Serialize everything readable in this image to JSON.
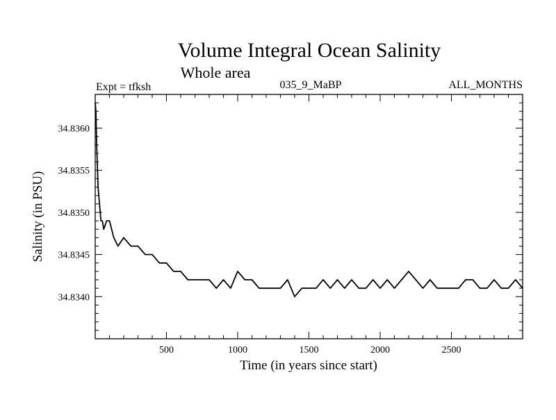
{
  "chart_data": {
    "type": "line",
    "title": "Volume Integral Ocean Salinity",
    "subtitle": "Whole area",
    "experiment_label": "Expt = tfksh",
    "run_label": "035_9_MaBP",
    "months_label": "ALL_MONTHS",
    "xlabel": "Time (in years since start)",
    "ylabel": "Salinity (in PSU)",
    "xlim": [
      0,
      3000
    ],
    "ylim": [
      34.8335,
      34.8364
    ],
    "x_ticks": [
      500,
      1000,
      1500,
      2000,
      2500
    ],
    "x_tick_labels": [
      "500",
      "1000",
      "1500",
      "2000",
      "2500"
    ],
    "y_ticks": [
      34.834,
      34.8345,
      34.835,
      34.8355,
      34.836
    ],
    "y_tick_labels": [
      "34.8340",
      "34.8345",
      "34.8350",
      "34.8355",
      "34.8360"
    ],
    "grid": false,
    "series": [
      {
        "name": "salinity",
        "x": [
          0,
          5,
          10,
          20,
          30,
          40,
          50,
          60,
          80,
          100,
          130,
          160,
          200,
          250,
          300,
          350,
          400,
          450,
          500,
          550,
          600,
          650,
          700,
          750,
          800,
          850,
          900,
          950,
          1000,
          1050,
          1100,
          1150,
          1200,
          1250,
          1300,
          1350,
          1400,
          1450,
          1500,
          1550,
          1600,
          1650,
          1700,
          1750,
          1800,
          1850,
          1900,
          1950,
          2000,
          2050,
          2100,
          2150,
          2200,
          2250,
          2300,
          2350,
          2400,
          2450,
          2500,
          2550,
          2600,
          2650,
          2700,
          2750,
          2800,
          2850,
          2900,
          2950,
          3000
        ],
        "values": [
          34.8363,
          34.8362,
          34.8358,
          34.8353,
          34.8351,
          34.8349,
          34.8349,
          34.8348,
          34.8349,
          34.8349,
          34.8347,
          34.8346,
          34.8347,
          34.8346,
          34.8346,
          34.8345,
          34.8345,
          34.8344,
          34.8344,
          34.8343,
          34.8343,
          34.8342,
          34.8342,
          34.8342,
          34.8342,
          34.8341,
          34.8342,
          34.8341,
          34.8343,
          34.8342,
          34.8342,
          34.8341,
          34.8341,
          34.8341,
          34.8341,
          34.8342,
          34.834,
          34.8341,
          34.8341,
          34.8341,
          34.8342,
          34.8341,
          34.8342,
          34.8341,
          34.8342,
          34.8341,
          34.8341,
          34.8342,
          34.8341,
          34.8342,
          34.8341,
          34.8342,
          34.8343,
          34.8342,
          34.8341,
          34.8342,
          34.8341,
          34.8341,
          34.8341,
          34.8341,
          34.8342,
          34.8342,
          34.8341,
          34.8341,
          34.8342,
          34.8341,
          34.8341,
          34.8342,
          34.8341
        ]
      }
    ]
  }
}
